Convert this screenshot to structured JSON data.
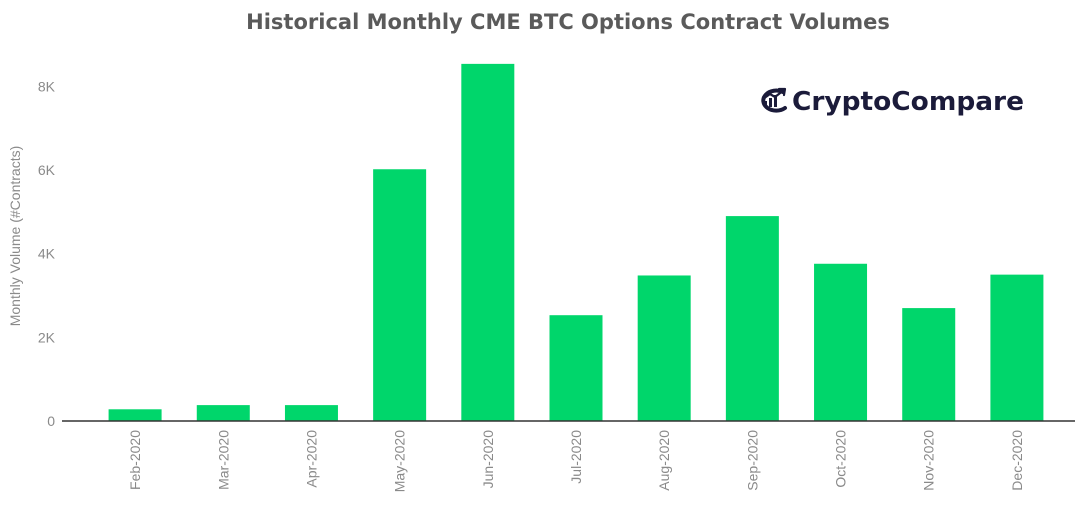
{
  "chart_data": {
    "type": "bar",
    "title": "Historical Monthly CME BTC Options Contract Volumes",
    "xlabel": "",
    "ylabel": "Monthly Volume (#Contracts)",
    "categories": [
      "Feb-2020",
      "Mar-2020",
      "Apr-2020",
      "May-2020",
      "Jun-2020",
      "Jul-2020",
      "Aug-2020",
      "Sep-2020",
      "Oct-2020",
      "Nov-2020",
      "Dec-2020"
    ],
    "series": [
      {
        "values": [
          280,
          380,
          380,
          6020,
          8540,
          2530,
          3480,
          4900,
          3760,
          2700,
          3500
        ]
      }
    ],
    "yticks": [
      {
        "value": 0,
        "label": "0"
      },
      {
        "value": 2000,
        "label": "2K"
      },
      {
        "value": 4000,
        "label": "4K"
      },
      {
        "value": 6000,
        "label": "6K"
      },
      {
        "value": 8000,
        "label": "8K"
      }
    ],
    "ylim": [
      0,
      8800
    ],
    "grid": false,
    "legend": "none",
    "bar_color": "#00d66b"
  },
  "logo": {
    "text": "CryptoCompare",
    "icon": "cryptocompare-logo-icon",
    "color": "#1b1b3a"
  }
}
